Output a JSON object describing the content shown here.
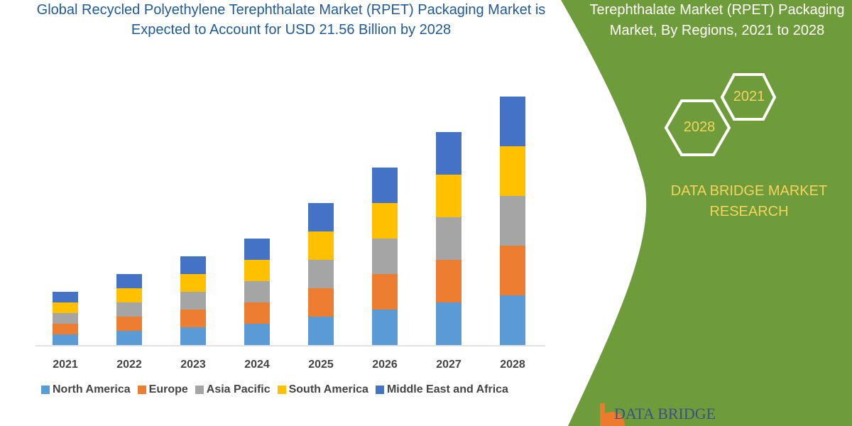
{
  "title_left": "Global Recycled Polyethylene Terephthalate Market (RPET) Packaging Market is Expected to Account for USD 21.56 Billion by 2028",
  "title_right": "Terephthalate Market (RPET) Packaging Market, By Regions, 2021 to 2028",
  "hex_labels": [
    "2021",
    "2028"
  ],
  "brand_text": "DATA BRIDGE MARKET RESEARCH",
  "logo_text": "DATA BRIDGE",
  "colors": {
    "panel": "#6f9c3a",
    "title": "#1f5a96",
    "accent_text": "#f4d35e"
  },
  "chart_data": {
    "type": "bar",
    "stacked": true,
    "title": "Global Recycled Polyethylene Terephthalate Market (RPET) Packaging Market is Expected to Account for USD 21.56 Billion by 2028",
    "categories": [
      "2021",
      "2022",
      "2023",
      "2024",
      "2025",
      "2026",
      "2027",
      "2028"
    ],
    "series": [
      {
        "name": "North America",
        "color": "#5b9bd5",
        "values": [
          3,
          4,
          5,
          6,
          8,
          10,
          12,
          14
        ]
      },
      {
        "name": "Europe",
        "color": "#ed7d31",
        "values": [
          3,
          4,
          5,
          6,
          8,
          10,
          12,
          14
        ]
      },
      {
        "name": "Asia Pacific",
        "color": "#a5a5a5",
        "values": [
          3,
          4,
          5,
          6,
          8,
          10,
          12,
          14
        ]
      },
      {
        "name": "South America",
        "color": "#ffc000",
        "values": [
          3,
          4,
          5,
          6,
          8,
          10,
          12,
          14
        ]
      },
      {
        "name": "Middle East and Africa",
        "color": "#4472c4",
        "values": [
          3,
          4,
          5,
          6,
          8,
          10,
          12,
          14
        ]
      }
    ],
    "y_axis_shown": false,
    "grid": false,
    "legend_position": "bottom"
  }
}
